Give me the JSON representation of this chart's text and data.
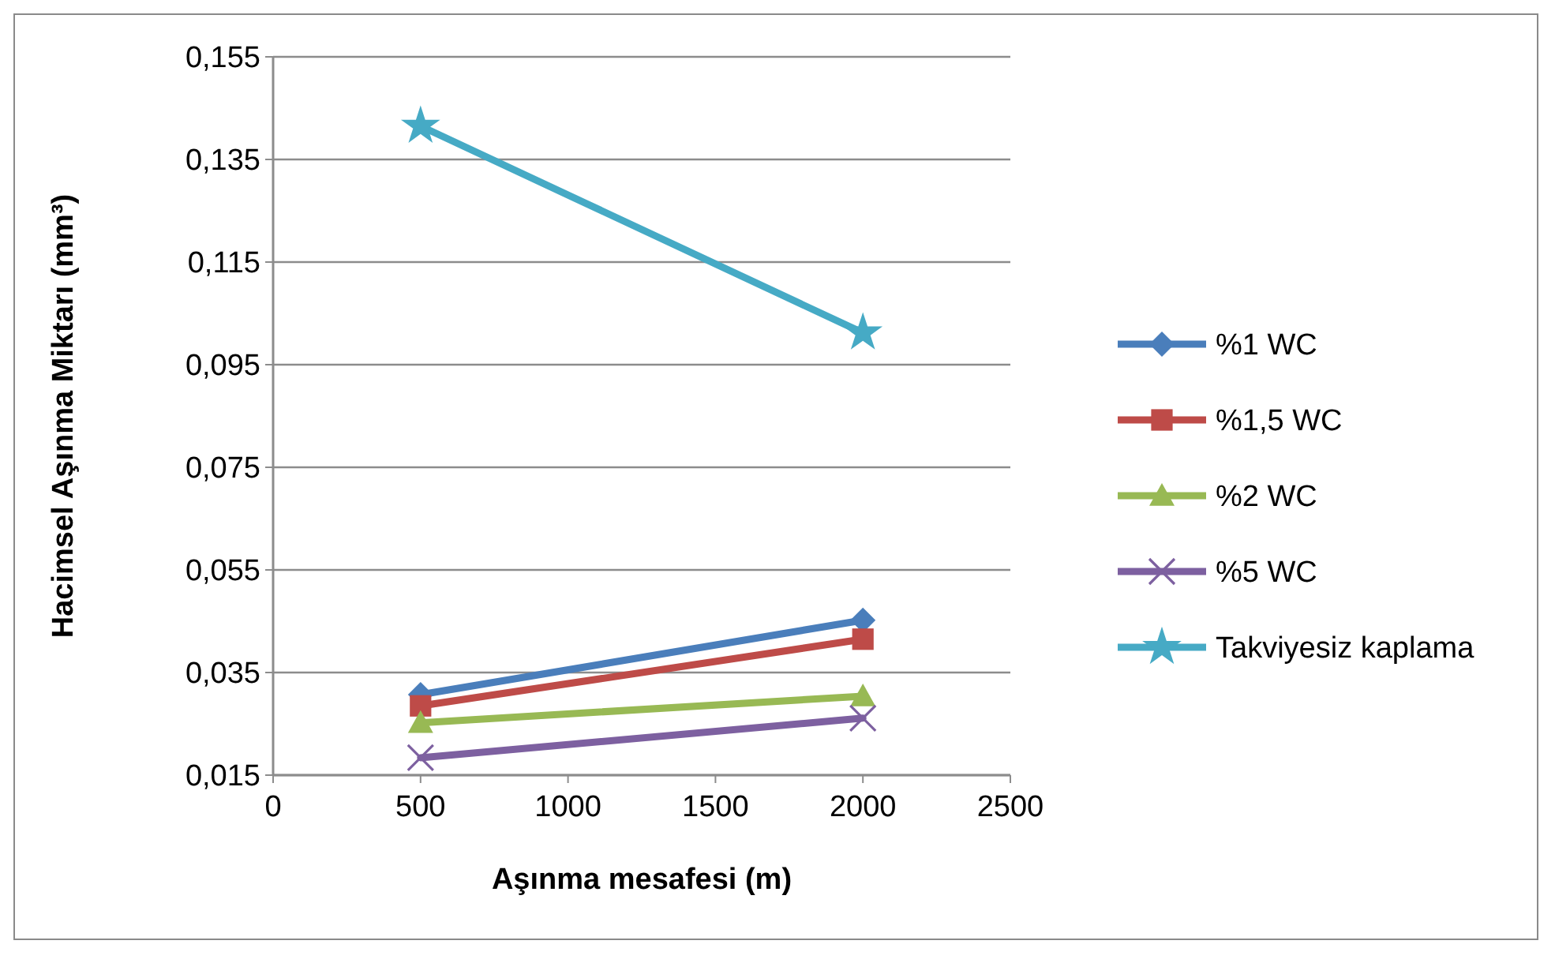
{
  "chart_data": {
    "type": "line",
    "xlabel": "Aşınma mesafesi (m)",
    "ylabel": "Hacimsel Aşınma Miktarı (mm³)",
    "x": [
      500,
      2000
    ],
    "series": [
      {
        "name": "%1 WC",
        "color": "#4a7ebb",
        "marker": "diamond",
        "values": [
          0.0307,
          0.0452
        ]
      },
      {
        "name": "%1,5 WC",
        "color": "#be4b48",
        "marker": "square",
        "values": [
          0.0285,
          0.0415
        ]
      },
      {
        "name": "%2 WC",
        "color": "#98b954",
        "marker": "triangle",
        "values": [
          0.0252,
          0.0304
        ]
      },
      {
        "name": "%5 WC",
        "color": "#7d60a0",
        "marker": "cross",
        "values": [
          0.0184,
          0.0261
        ]
      },
      {
        "name": "Takviyesiz kaplama",
        "color": "#46aac5",
        "marker": "star",
        "values": [
          0.1415,
          0.1012
        ]
      }
    ],
    "xlim": [
      0,
      2500
    ],
    "xticks": [
      0,
      500,
      1000,
      1500,
      2000,
      2500
    ],
    "ylim": [
      0.015,
      0.155
    ],
    "yticks": [
      {
        "value": 0.015,
        "label": "0,015"
      },
      {
        "value": 0.035,
        "label": "0,035"
      },
      {
        "value": 0.055,
        "label": "0,055"
      },
      {
        "value": 0.075,
        "label": "0,075"
      },
      {
        "value": 0.095,
        "label": "0,095"
      },
      {
        "value": 0.115,
        "label": "0,115"
      },
      {
        "value": 0.135,
        "label": "0,135"
      },
      {
        "value": 0.155,
        "label": "0,155"
      }
    ],
    "grid": "y",
    "legend": "right",
    "line_style": "solid"
  }
}
